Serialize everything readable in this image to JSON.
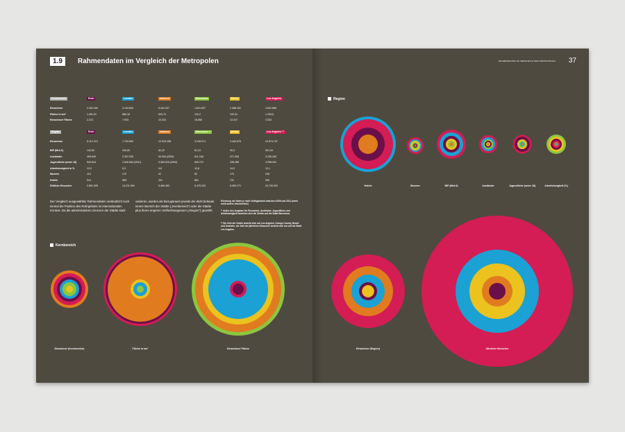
{
  "header": {
    "section": "1.9",
    "title": "Rahmendaten im Vergleich der Metropolen",
    "running_head": "RAHMENDATEN IM VERGLEICH DER METROPOLEN",
    "page_number": "37"
  },
  "colors": {
    "Ruhr": "#6b0f4a",
    "London": "#1ba1d3",
    "Istanbul": "#e07b1f",
    "Barcelona": "#8cc63f",
    "Berlin": "#ecc21f",
    "Los Angeles": "#d41c55",
    "tag_kern": "#b5b5b5",
    "tag_region": "#b5b5b5"
  },
  "table": {
    "kern": {
      "label": "Kernbereich",
      "cities": [
        "Ruhr",
        "London",
        "Istanbul",
        "Barcelona",
        "Berlin",
        "Los Angeles"
      ],
      "rows": [
        {
          "label": "Einwohner",
          "values": [
            "2.302.160",
            "2.143.600",
            "6.441.227",
            "1.621.537",
            "1.358.151",
            "2.631.858"
          ]
        },
        {
          "label": "Fläche in km²",
          "values": [
            "1.451,91",
            "580,16",
            "620,73",
            "102,2",
            "120,31",
            "1.293,5"
          ]
        },
        {
          "label": "Einwohner/ Fläche",
          "values": [
            "2.213",
            "7.903",
            "10.324",
            "15.856",
            "13.247",
            "2.533"
          ]
        }
      ]
    },
    "region": {
      "label": "Region",
      "cities": [
        "Ruhr",
        "London",
        "Istanbul",
        "Barcelona *¹",
        "Berlin",
        "Los Angeles *²"
      ],
      "rows": [
        {
          "label": "Einwohner",
          "values": [
            "5.112.474",
            "7.753.500",
            "12.915.158",
            "3.218.071",
            "3.442.675",
            "12.874.797"
          ]
        },
        {
          "label": "BIP (Mrd.€)",
          "values": [
            "142,50",
            "342,60",
            "82,22",
            "61,24",
            "90,3",
            "521,34"
          ]
        },
        {
          "label": "Ausländer",
          "values": [
            "490.640",
            "2.347.026",
            "94.094 (2000)",
            "611.248",
            "471.306",
            "3.226.345"
          ]
        },
        {
          "label": "Jugendliche (unter 18)",
          "values": [
            "940.814",
            "1.616.062 (2001)",
            "3.363.025 (2000)",
            "540.272",
            "436.285",
            "3.298.294"
          ]
        },
        {
          "label": "Arbeitslosigkeit in %",
          "values": [
            "12,0",
            "6,3",
            "9,6",
            "10,8",
            "14,0",
            "12,1"
          ]
        },
        {
          "label": "Museen",
          "values": [
            "110",
            "170",
            "42",
            "52",
            "170",
            "235"
          ]
        },
        {
          "label": "Hotels",
          "values": [
            "914",
            "965",
            "341",
            "581",
            "731",
            "900"
          ]
        },
        {
          "label": "Ähtliche Besucher",
          "values": [
            "3.551.008",
            "14.211.000",
            "5.460.463",
            "6.476.033",
            "8.263.171",
            "24.700.000"
          ]
        }
      ]
    }
  },
  "body": {
    "col1": "Der Vergleich ausgewählter Rahmendaten verdeutlicht noch einmal die Position des Ruhrgebiets im internationalen Kontext. Da die administrativen Grenzen der Städte stark",
    "col2": "variieren, wurden als Bezugsraum jeweils der dicht bebaute innere Bereich der Städte („Kernbereich“) oder die Städte plus ihrem engeren Verflechtungsraum („Region“) gewählt.",
    "note1": "Erhebung der Daten je nach Verfügbarkeit zwischen 2006 und 2011 (wenn nicht anders beschrieben)",
    "note2": "*¹ Außer den Angaben für Einwohner, Ausländer, Jugendliche und Arbeitslosigkeit beziehen sich die Zahlen auf die Stadt Barcelona.",
    "note3": "*² Die Zahl der Hotels bezieht sich auf Los Angeles, Orange County, Beach und Anaheim, die Zahl der jährlichen Besucher bezieht sich nur auf die Stadt Los Angeles."
  },
  "section_headings": {
    "kern": "Kernbereich",
    "region": "Region"
  },
  "chart_data": [
    {
      "type": "concentric-circles",
      "group": "Region",
      "metrics": [
        {
          "label": "Hotels",
          "rings": [
            "London",
            "Los Angeles",
            "Ruhr",
            "Istanbul"
          ]
        },
        {
          "label": "Museen",
          "rings": [
            "Los Angeles",
            "London",
            "Berlin",
            "Barcelona",
            "Ruhr",
            "Istanbul"
          ]
        },
        {
          "label": "BIP (Mrd.€)",
          "rings": [
            "Los Angeles",
            "London",
            "Ruhr",
            "Berlin",
            "Barcelona",
            "Istanbul"
          ]
        },
        {
          "label": "Ausländer",
          "rings": [
            "Los Angeles",
            "London",
            "Barcelona",
            "Ruhr",
            "Berlin",
            "Istanbul"
          ]
        },
        {
          "label": "Jugendliche (unter 18)",
          "rings": [
            "Los Angeles",
            "Ruhr",
            "Berlin",
            "Barcelona",
            "London",
            "Istanbul"
          ]
        },
        {
          "label": "Arbeitslosigkeit (%)",
          "rings": [
            "Barcelona",
            "Berlin",
            "Ruhr",
            "Los Angeles",
            "Istanbul",
            "London"
          ]
        }
      ]
    },
    {
      "type": "concentric-circles",
      "group": "Kernbereich",
      "metrics": [
        {
          "label": "Einwohner (Kernbereich)",
          "rings": [
            "Istanbul",
            "Los Angeles",
            "Ruhr",
            "London",
            "Barcelona",
            "Berlin"
          ]
        },
        {
          "label": "Fläche in km²",
          "rings": [
            "Los Angeles",
            "Ruhr",
            "Istanbul",
            "Berlin",
            "London",
            "Barcelona"
          ]
        },
        {
          "label": "Einwohner/ Fläche",
          "rings": [
            "Barcelona",
            "Istanbul",
            "Berlin",
            "London",
            "Los Angeles",
            "Ruhr"
          ]
        }
      ]
    },
    {
      "type": "concentric-circles",
      "group": "Region",
      "metrics": [
        {
          "label": "Einwohner (Region)",
          "rings": [
            "Los Angeles",
            "Istanbul",
            "London",
            "Ruhr",
            "Barcelona",
            "Berlin"
          ]
        },
        {
          "label": "Jährliche Besucher",
          "rings": [
            "Los Angeles",
            "London",
            "Berlin",
            "Istanbul",
            "Ruhr"
          ]
        }
      ]
    }
  ]
}
